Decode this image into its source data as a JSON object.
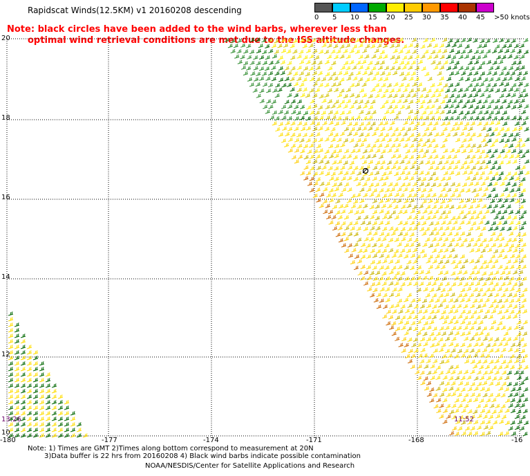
{
  "title": "Rapidscat Winds(12.5KM) v1 20160208 descending",
  "note": {
    "line1": "Note: black circles have been added to the wind barbs, wherever less than",
    "line2": "optimal wind retrieval conditions are met due to the ISS altitude changes."
  },
  "legend": {
    "labels": [
      "0",
      "5",
      "10",
      "15",
      "20",
      "25",
      "30",
      "35",
      "40",
      "45",
      ">50 knots"
    ],
    "colors": [
      "#555555",
      "#00ccff",
      "#0066ff",
      "#00aa00",
      "#ffee00",
      "#ffcc00",
      "#ff9900",
      "#ff0000",
      "#aa3300",
      "#cc00cc",
      "#4b0082"
    ]
  },
  "axes": {
    "lat_labels": [
      "20",
      "18",
      "16",
      "14",
      "12",
      "10"
    ],
    "lon_labels": [
      "-180",
      "-177",
      "-174",
      "-171",
      "-168",
      "-16"
    ]
  },
  "times": {
    "left": "13:26",
    "right": "11:52"
  },
  "footer": {
    "line1": "Note: 1) Times are GMT 2)Times along bottom correspond to measurement at 20N",
    "line2": "3)Data buffer is 22 hrs from 20160208 4) Black wind barbs indicate possible contamination",
    "line3": "NOAA/NESDIS/Center for Satellite Applications and Research"
  }
}
